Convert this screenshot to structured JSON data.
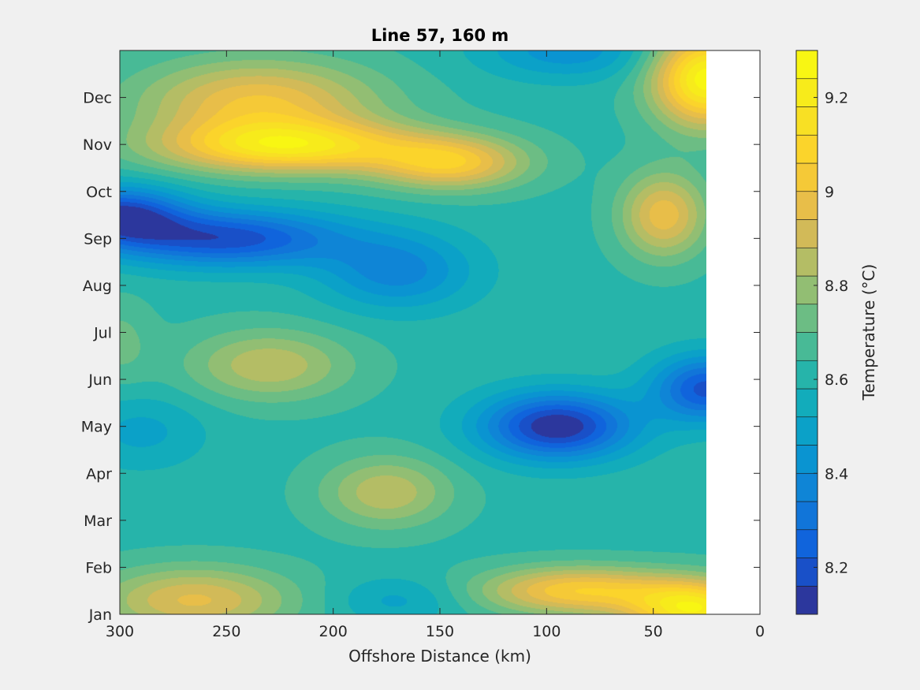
{
  "chart_data": {
    "type": "heatmap",
    "subtype": "filled-contour",
    "title": "Line 57, 160 m",
    "xlabel": "Offshore Distance (km)",
    "ylabel": "",
    "xlim": [
      300,
      0
    ],
    "x_reversed": true,
    "x_ticks": [
      300,
      250,
      200,
      150,
      100,
      50,
      0
    ],
    "x_tick_labels": [
      "300",
      "250",
      "200",
      "150",
      "100",
      "50",
      "0"
    ],
    "y_ticks": [
      "Jan",
      "Feb",
      "Mar",
      "Apr",
      "May",
      "Jun",
      "Jul",
      "Aug",
      "Sep",
      "Oct",
      "Nov",
      "Dec"
    ],
    "ylim_months": [
      1,
      13.0
    ],
    "data_extent_x_km": [
      25,
      300
    ],
    "colormap": "parula",
    "colorbar": {
      "label": "Temperature (°C)",
      "range": [
        8.1,
        9.3
      ],
      "ticks": [
        8.2,
        8.4,
        8.6,
        8.8,
        9,
        9.2
      ],
      "tick_labels": [
        "8.2",
        "8.4",
        "8.6",
        "8.8",
        "9",
        "9.2"
      ],
      "levels": 20,
      "placement": "right"
    },
    "base_value": 8.62,
    "features": [
      {
        "x": 235,
        "month": 11.9,
        "value": 9.0,
        "sx": 55,
        "sy": 0.9
      },
      {
        "x": 220,
        "month": 10.95,
        "value": 9.13,
        "sx": 60,
        "sy": 0.55
      },
      {
        "x": 145,
        "month": 10.6,
        "value": 9.02,
        "sx": 35,
        "sy": 0.55
      },
      {
        "x": 25,
        "month": 12.4,
        "value": 9.28,
        "sx": 25,
        "sy": 1.0
      },
      {
        "x": 45,
        "month": 9.5,
        "value": 8.98,
        "sx": 20,
        "sy": 0.9
      },
      {
        "x": 300,
        "month": 9.5,
        "value": 8.17,
        "sx": 30,
        "sy": 0.6
      },
      {
        "x": 250,
        "month": 9.0,
        "value": 8.18,
        "sx": 55,
        "sy": 0.6
      },
      {
        "x": 170,
        "month": 8.3,
        "value": 8.37,
        "sx": 35,
        "sy": 0.8
      },
      {
        "x": 90,
        "month": 13.0,
        "value": 8.42,
        "sx": 40,
        "sy": 0.6
      },
      {
        "x": 230,
        "month": 6.3,
        "value": 8.87,
        "sx": 38,
        "sy": 0.75
      },
      {
        "x": 300,
        "month": 6.8,
        "value": 8.72,
        "sx": 15,
        "sy": 0.9
      },
      {
        "x": 95,
        "month": 5.0,
        "value": 8.1,
        "sx": 35,
        "sy": 0.7
      },
      {
        "x": 25,
        "month": 5.8,
        "value": 8.2,
        "sx": 25,
        "sy": 0.7
      },
      {
        "x": 175,
        "month": 3.6,
        "value": 8.87,
        "sx": 30,
        "sy": 0.75
      },
      {
        "x": 85,
        "month": 1.5,
        "value": 9.05,
        "sx": 45,
        "sy": 0.5
      },
      {
        "x": 30,
        "month": 1.1,
        "value": 9.2,
        "sx": 30,
        "sy": 0.6
      },
      {
        "x": 265,
        "month": 1.3,
        "value": 8.95,
        "sx": 45,
        "sy": 0.7
      },
      {
        "x": 290,
        "month": 4.9,
        "value": 8.5,
        "sx": 30,
        "sy": 0.8
      },
      {
        "x": 170,
        "month": 1.3,
        "value": 8.5,
        "sx": 30,
        "sy": 0.5
      }
    ]
  }
}
